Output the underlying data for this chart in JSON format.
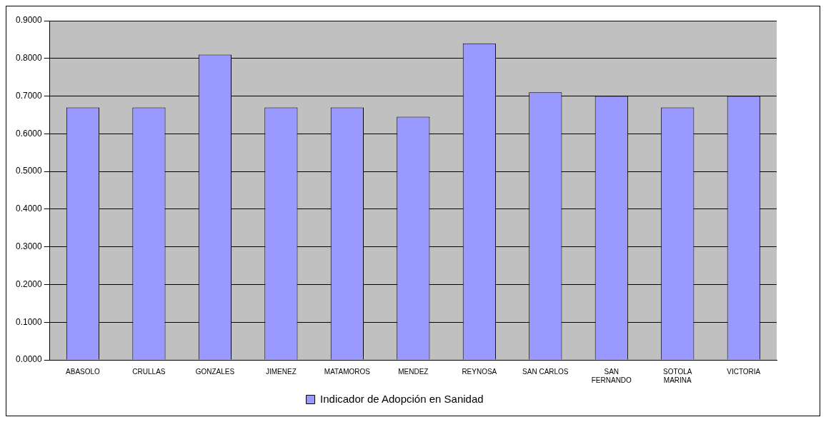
{
  "chart_data": {
    "type": "bar",
    "categories": [
      "ABASOLO",
      "CRULLAS",
      "GONZALES",
      "JIMENEZ",
      "MATAMOROS",
      "MENDEZ",
      "REYNOSA",
      "SAN CARLOS",
      "SAN FERNANDO",
      "SOTOLA MARINA",
      "VICTORIA"
    ],
    "series": [
      {
        "name": "Indicador de Adopción en Sanidad",
        "color": "#9999ff",
        "values": [
          0.67,
          0.67,
          0.81,
          0.67,
          0.67,
          0.645,
          0.84,
          0.71,
          0.7,
          0.67,
          0.7
        ]
      }
    ],
    "ylim": [
      0,
      0.9
    ],
    "yticks": [
      {
        "value": 0,
        "label": "0.0000"
      },
      {
        "value": 0.1,
        "label": "0.1000"
      },
      {
        "value": 0.2,
        "label": "0.2000"
      },
      {
        "value": 0.3,
        "label": "0.3000"
      },
      {
        "value": 0.4,
        "label": "0.4000"
      },
      {
        "value": 0.5,
        "label": "0.5000"
      },
      {
        "value": 0.6,
        "label": "0.6000"
      },
      {
        "value": 0.7,
        "label": "0.7000"
      },
      {
        "value": 0.8,
        "label": "0.8000"
      },
      {
        "value": 0.9,
        "label": "0.9000"
      }
    ],
    "grid": "y",
    "legend": "bottom"
  }
}
